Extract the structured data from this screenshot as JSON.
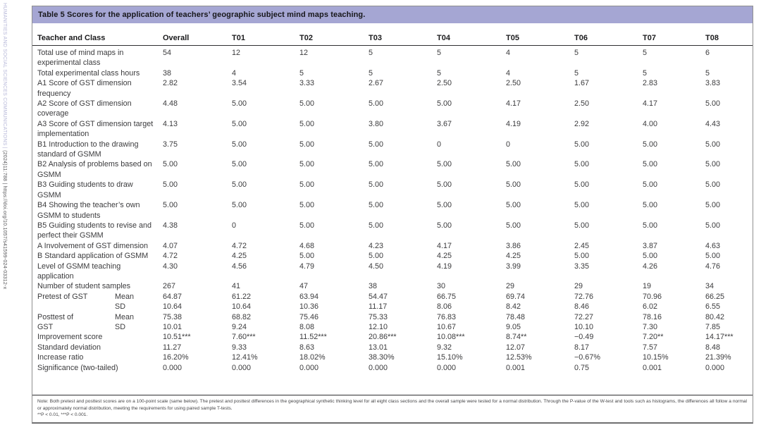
{
  "sidebar": {
    "journal": "HUMANITIES AND SOCIAL SCIENCES COMMUNICATIONS | ",
    "citation": "(2024)11:788 | https://doi.org/10.1057/s41599-024-03312-x"
  },
  "colors": {
    "title_bar_bg": "#a5a6d3",
    "sidebar_accent": "#b6b7d8",
    "rule_dark": "#2f2f31",
    "border_gray": "#8f8f8f",
    "text": "#3b3b3d"
  },
  "table": {
    "title": "Table 5 Scores for the application of teachers’ geographic subject mind maps teaching.",
    "columns": [
      "Teacher and Class",
      "Overall",
      "T01",
      "T02",
      "T03",
      "T04",
      "T05",
      "T06",
      "T07",
      "T08"
    ],
    "rows": [
      {
        "label": "Total use of mind maps in experimental class",
        "sublabel": "",
        "values": [
          "54",
          "12",
          "12",
          "5",
          "5",
          "4",
          "5",
          "5",
          "6"
        ]
      },
      {
        "label": "Total experimental class hours",
        "sublabel": "",
        "values": [
          "38",
          "4",
          "5",
          "5",
          "5",
          "4",
          "5",
          "5",
          "5"
        ]
      },
      {
        "label": "A1 Score of GST dimension frequency",
        "sublabel": "",
        "values": [
          "2.82",
          "3.54",
          "3.33",
          "2.67",
          "2.50",
          "2.50",
          "1.67",
          "2.83",
          "3.83"
        ]
      },
      {
        "label": "A2 Score of GST dimension coverage",
        "sublabel": "",
        "values": [
          "4.48",
          "5.00",
          "5.00",
          "5.00",
          "5.00",
          "4.17",
          "2.50",
          "4.17",
          "5.00"
        ]
      },
      {
        "label": "A3 Score of GST dimension target implementation",
        "sublabel": "",
        "values": [
          "4.13",
          "5.00",
          "5.00",
          "3.80",
          "3.67",
          "4.19",
          "2.92",
          "4.00",
          "4.43"
        ]
      },
      {
        "label": "B1 Introduction to the drawing standard of GSMM",
        "sublabel": "",
        "values": [
          "3.75",
          "5.00",
          "5.00",
          "5.00",
          "0",
          "0",
          "5.00",
          "5.00",
          "5.00"
        ]
      },
      {
        "label": "B2 Analysis of problems based on GSMM",
        "sublabel": "",
        "values": [
          "5.00",
          "5.00",
          "5.00",
          "5.00",
          "5.00",
          "5.00",
          "5.00",
          "5.00",
          "5.00"
        ]
      },
      {
        "label": "B3 Guiding students to draw GSMM",
        "sublabel": "",
        "values": [
          "5.00",
          "5.00",
          "5.00",
          "5.00",
          "5.00",
          "5.00",
          "5.00",
          "5.00",
          "5.00"
        ]
      },
      {
        "label": "B4 Showing the teacher’s own GSMM to students",
        "sublabel": "",
        "values": [
          "5.00",
          "5.00",
          "5.00",
          "5.00",
          "5.00",
          "5.00",
          "5.00",
          "5.00",
          "5.00"
        ]
      },
      {
        "label": "B5 Guiding students to revise and perfect their GSMM",
        "sublabel": "",
        "values": [
          "4.38",
          "0",
          "5.00",
          "5.00",
          "5.00",
          "5.00",
          "5.00",
          "5.00",
          "5.00"
        ]
      },
      {
        "label": "A Involvement of GST dimension",
        "sublabel": "",
        "values": [
          "4.07",
          "4.72",
          "4.68",
          "4.23",
          "4.17",
          "3.86",
          "2.45",
          "3.87",
          "4.63"
        ]
      },
      {
        "label": "B Standard application of GSMM",
        "sublabel": "",
        "values": [
          "4.72",
          "4.25",
          "5.00",
          "5.00",
          "4.25",
          "4.25",
          "5.00",
          "5.00",
          "5.00"
        ]
      },
      {
        "label": "Level of GSMM teaching application",
        "sublabel": "",
        "values": [
          "4.30",
          "4.56",
          "4.79",
          "4.50",
          "4.19",
          "3.99",
          "3.35",
          "4.26",
          "4.76"
        ]
      },
      {
        "label": "Number of student samples",
        "sublabel": "",
        "values": [
          "267",
          "41",
          "47",
          "38",
          "30",
          "29",
          "29",
          "19",
          "34"
        ]
      },
      {
        "label": "Pretest of GST",
        "sublabel": "Mean",
        "values": [
          "64.87",
          "61.22",
          "63.94",
          "54.47",
          "66.75",
          "69.74",
          "72.76",
          "70.96",
          "66.25"
        ]
      },
      {
        "label": "",
        "sublabel": "SD",
        "values": [
          "10.64",
          "10.64",
          "10.36",
          "11.17",
          "8.06",
          "8.42",
          "8.46",
          "6.02",
          "6.55"
        ]
      },
      {
        "label": "Posttest of",
        "sublabel": "Mean",
        "values": [
          "75.38",
          "68.82",
          "75.46",
          "75.33",
          "76.83",
          "78.48",
          "72.27",
          "78.16",
          "80.42"
        ]
      },
      {
        "label": "GST",
        "sublabel": "SD",
        "values": [
          "10.01",
          "9.24",
          "8.08",
          "12.10",
          "10.67",
          "9.05",
          "10.10",
          "7.30",
          "7.85"
        ]
      },
      {
        "label": "Improvement score",
        "sublabel": "",
        "values": [
          "10.51***",
          "7.60***",
          "11.52***",
          "20.86***",
          "10.08***",
          "8.74**",
          "−0.49",
          "7.20**",
          "14.17***"
        ]
      },
      {
        "label": "Standard deviation",
        "sublabel": "",
        "values": [
          "11.27",
          "9.33",
          "8.63",
          "13.01",
          "9.32",
          "12.07",
          "8.17",
          "7.57",
          "8.48"
        ]
      },
      {
        "label": "Increase ratio",
        "sublabel": "",
        "values": [
          "16.20%",
          "12.41%",
          "18.02%",
          "38.30%",
          "15.10%",
          "12.53%",
          "−0.67%",
          "10.15%",
          "21.39%"
        ]
      },
      {
        "label": "Significance (two-tailed)",
        "sublabel": "",
        "values": [
          "0.000",
          "0.000",
          "0.000",
          "0.000",
          "0.000",
          "0.001",
          "0.75",
          "0.001",
          "0.000"
        ]
      }
    ],
    "note_line1": "Note: Both pretest and posttest scores are on a 100-point scale (same below). The pretest and posttest differences in the geographical synthetic thinking level for all eight class sections and the overall sample were tested for a normal distribution. Through the P-value of the W-test and tools such as histograms, the differences all follow a normal or approximately normal distribution, meeting the requirements for using paired sample T-tests.",
    "note_line2": "**P < 0.01, ***P < 0.001."
  }
}
